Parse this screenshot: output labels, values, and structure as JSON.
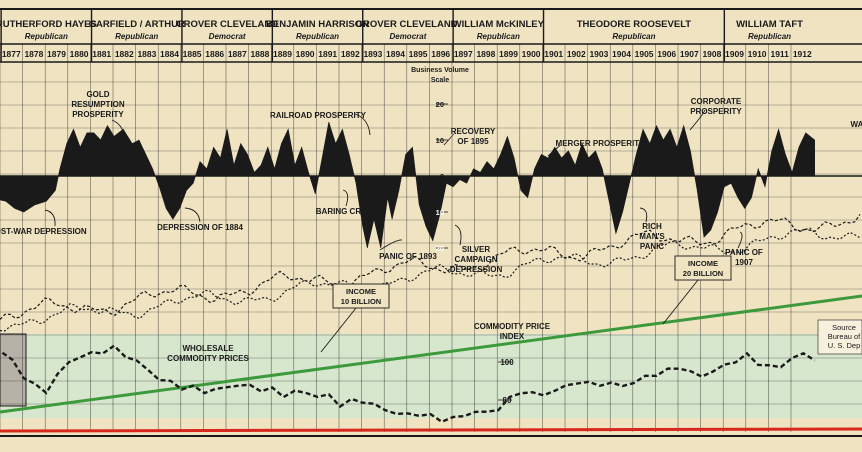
{
  "chart_data": {
    "type": "area",
    "colors": {
      "paper": "#efe3c2",
      "ink": "#1a1a1a",
      "income": "#3c9a3c",
      "baseline": "#d8281e",
      "band": "#cfe8d2",
      "box": "#b7b2a8"
    },
    "presidents": [
      {
        "name": "RUTHERFORD HAYES",
        "party": "Republican",
        "start": 1877,
        "end": 1881
      },
      {
        "name": "GARFIELD / ARTHUR",
        "party": "Republican",
        "start": 1881,
        "end": 1885
      },
      {
        "name": "GROVER CLEVELAND",
        "party": "Democrat",
        "start": 1885,
        "end": 1889
      },
      {
        "name": "BENJAMIN HARRISON",
        "party": "Republican",
        "start": 1889,
        "end": 1893
      },
      {
        "name": "GROVER CLEVELAND.",
        "party": "Democrat",
        "start": 1893,
        "end": 1897
      },
      {
        "name": "WILLIAM McKINLEY",
        "party": "Republican",
        "start": 1897,
        "end": 1901
      },
      {
        "name": "THEODORE ROOSEVELT",
        "party": "Republican",
        "start": 1901,
        "end": 1909
      },
      {
        "name": "WILLIAM TAFT",
        "party": "Republican",
        "start": 1909,
        "end": 1913
      }
    ],
    "years": [
      "1877",
      "1878",
      "1879",
      "1880",
      "1881",
      "1882",
      "1883",
      "1884",
      "1885",
      "1886",
      "1887",
      "1888",
      "1889",
      "1890",
      "1891",
      "1892",
      "1893",
      "1894",
      "1895",
      "1896",
      "1897",
      "1898",
      "1899",
      "1900",
      "1901",
      "1902",
      "1903",
      "1904",
      "1905",
      "1906",
      "1907",
      "1908",
      "1909",
      "1910",
      "1911",
      "1912"
    ],
    "scale_title": [
      "Business Volume",
      "Scale"
    ],
    "scale_ticks": [
      {
        "label": "20",
        "v": 20
      },
      {
        "label": "10",
        "v": 10
      },
      {
        "label": "0",
        "v": 0
      },
      {
        "label": "10",
        "v": -10
      },
      {
        "label": "20",
        "v": -20
      }
    ],
    "business_volume": {
      "x": [
        1876.5,
        1877.2,
        1877.6,
        1878.0,
        1878.5,
        1879.0,
        1879.4,
        1879.6,
        1879.9,
        1880.2,
        1880.5,
        1880.8,
        1881.1,
        1881.4,
        1881.7,
        1882.0,
        1882.4,
        1882.8,
        1883.1,
        1883.4,
        1883.7,
        1884.0,
        1884.3,
        1884.6,
        1884.9,
        1885.2,
        1885.5,
        1885.8,
        1886.1,
        1886.4,
        1886.7,
        1887.0,
        1887.3,
        1887.6,
        1887.9,
        1888.2,
        1888.5,
        1888.8,
        1889.1,
        1889.4,
        1889.7,
        1890.0,
        1890.3,
        1890.6,
        1890.9,
        1891.2,
        1891.5,
        1891.8,
        1892.1,
        1892.4,
        1892.7,
        1893.0,
        1893.2,
        1893.5,
        1893.8,
        1894.1,
        1894.3,
        1894.6,
        1894.9,
        1895.2,
        1895.5,
        1895.8,
        1896.1,
        1896.4,
        1896.7,
        1897.0,
        1897.3,
        1897.6,
        1897.9,
        1898.2,
        1898.5,
        1898.8,
        1899.1,
        1899.4,
        1899.7,
        1900.0,
        1900.3,
        1900.6,
        1900.9,
        1901.2,
        1901.5,
        1901.8,
        1902.1,
        1902.4,
        1902.7,
        1903.0,
        1903.3,
        1903.6,
        1903.9,
        1904.2,
        1904.5,
        1904.8,
        1905.1,
        1905.4,
        1905.7,
        1906.0,
        1906.3,
        1906.6,
        1906.9,
        1907.2,
        1907.5,
        1907.8,
        1908.1,
        1908.4,
        1908.7,
        1909.0,
        1909.3,
        1909.6,
        1909.9,
        1910.2,
        1910.5,
        1910.8,
        1911.1,
        1911.4,
        1911.7,
        1912.0,
        1912.3,
        1912.6,
        1913.0
      ],
      "y": [
        -6,
        -7,
        -9,
        -10,
        -8,
        -7,
        -4,
        2,
        9,
        13,
        8,
        12,
        12,
        10,
        14,
        11,
        13,
        9,
        10,
        6,
        2,
        -3,
        -9,
        -12,
        -9,
        -4,
        -2,
        4,
        2,
        8,
        5,
        13,
        3,
        9,
        6,
        1,
        3,
        8,
        2,
        9,
        13,
        3,
        8,
        1,
        -5,
        5,
        15,
        9,
        13,
        6,
        -2,
        -14,
        -20,
        -12,
        -20,
        -6,
        -12,
        -4,
        6,
        8,
        -8,
        -14,
        -18,
        -11,
        -2,
        -3,
        -1,
        -2,
        2,
        1,
        4,
        2,
        6,
        11,
        5,
        -4,
        -6,
        2,
        6,
        5,
        8,
        5,
        7,
        3,
        9,
        5,
        7,
        2,
        -7,
        -16,
        -10,
        -2,
        6,
        13,
        9,
        14,
        10,
        13,
        8,
        14,
        7,
        -4,
        -17,
        -15,
        -10,
        -3,
        -2,
        -6,
        -9,
        -6,
        2,
        -3,
        7,
        13,
        6,
        1,
        8,
        12,
        10
      ],
      "ymin": -25,
      "ymax": 25
    },
    "wholesale_prices": {
      "x": [
        1876.5,
        1877,
        1877.5,
        1878,
        1878.5,
        1879,
        1879.5,
        1880,
        1880.5,
        1881,
        1881.5,
        1882,
        1882.5,
        1883,
        1883.5,
        1884,
        1884.5,
        1885,
        1885.5,
        1886,
        1886.5,
        1887,
        1887.5,
        1888,
        1888.5,
        1889,
        1889.5,
        1890,
        1890.5,
        1891,
        1891.5,
        1892,
        1892.5,
        1893,
        1893.5,
        1894,
        1894.5,
        1895,
        1895.5,
        1896,
        1896.5,
        1897,
        1897.5,
        1898,
        1898.5,
        1899,
        1899.5,
        1900,
        1900.5,
        1901,
        1901.5,
        1902,
        1902.5,
        1903,
        1903.5,
        1904,
        1904.5,
        1905,
        1905.5,
        1906,
        1906.5,
        1907,
        1907.5,
        1908,
        1908.5,
        1909,
        1909.5,
        1910,
        1910.5,
        1911,
        1911.5,
        1912,
        1912.5,
        1913
      ],
      "y": [
        110,
        106,
        100,
        93,
        87,
        85,
        93,
        100,
        103,
        104,
        106,
        107,
        104,
        100,
        96,
        91,
        89,
        87,
        86,
        85,
        85,
        87,
        88,
        87,
        86,
        85,
        83,
        84,
        84,
        82,
        82,
        78,
        79,
        80,
        77,
        75,
        73,
        72,
        73,
        71,
        70,
        70,
        72,
        74,
        73,
        76,
        80,
        85,
        83,
        83,
        85,
        87,
        90,
        88,
        89,
        88,
        88,
        89,
        92,
        94,
        95,
        98,
        94,
        93,
        95,
        98,
        101,
        103,
        100,
        97,
        98,
        102,
        104,
        102
      ],
      "ymin": 50,
      "ymax": 125
    },
    "index_ticks": [
      {
        "label": "100",
        "v": 100
      },
      {
        "label": "80",
        "v": 80
      }
    ],
    "index_label": "COMMODITY PRICE INDEX",
    "annotations": [
      {
        "text": "GOLD RESUMPTION PROSPERITY",
        "x": 1881.3,
        "lines": [
          "GOLD",
          "RESUMPTION",
          "PROSPERITY"
        ]
      },
      {
        "text": "POST-WAR DEPRESSION",
        "x": 1878.2,
        "lines": [
          "POST-WAR DEPRESSION"
        ]
      },
      {
        "text": "DEPRESSION OF 1884",
        "x": 1885.0,
        "lines": [
          "DEPRESSION OF 1884"
        ]
      },
      {
        "text": "RAILROAD PROSPERITY",
        "x": 1890.7,
        "lines": [
          "RAILROAD PROSPERITY"
        ]
      },
      {
        "text": "BARING CRISIS",
        "x": 1891.3,
        "lines": [
          "BARING CRISIS"
        ]
      },
      {
        "text": "PANIC OF 1893",
        "x": 1892.4,
        "lines": [
          "PANIC OF 1893"
        ]
      },
      {
        "text": "RECOVERY OF 1895",
        "x": 1895.6,
        "lines": [
          "RECOVERY",
          "OF 1895"
        ]
      },
      {
        "text": "SILVER CAMPAIGN DEPRESSION",
        "x": 1896.1,
        "lines": [
          "SILVER",
          "CAMPAIGN",
          "DEPRESSION"
        ]
      },
      {
        "text": "MERGER PROSPERITY",
        "x": 1902.6,
        "lines": [
          "MERGER PROSPERITY"
        ]
      },
      {
        "text": "RICH MAN'S PANIC",
        "x": 1904.1,
        "lines": [
          "RICH",
          "MAN'S",
          "PANIC"
        ]
      },
      {
        "text": "CORPORATE PROSPERITY",
        "x": 1906.5,
        "lines": [
          "CORPORATE",
          "PROSPERITY"
        ]
      },
      {
        "text": "PANIC OF 1907",
        "x": 1908.7,
        "lines": [
          "PANIC OF",
          "1907"
        ]
      },
      {
        "text": "WA",
        "x": 1912.8,
        "lines": [
          "WA"
        ]
      },
      {
        "text": "WHOLESALE COMMODITY PRICES",
        "x": 1885.0,
        "lines": [
          "WHOLESALE",
          "COMMODITY PRICES"
        ]
      }
    ],
    "income_labels": [
      {
        "lines": [
          "INCOME",
          "10 BILLION"
        ],
        "x": 1892.0
      },
      {
        "lines": [
          "INCOME",
          "20 BILLION"
        ],
        "x": 1906.0
      }
    ],
    "source_lines": [
      "Source",
      "Bureau of",
      "U. S. Dep"
    ]
  }
}
